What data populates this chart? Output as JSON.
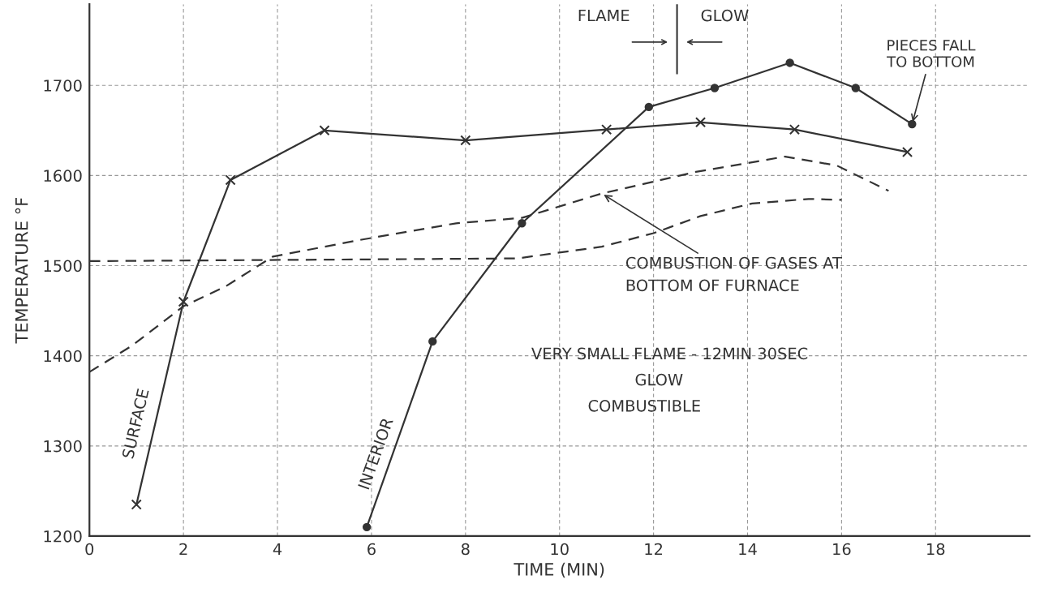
{
  "chart_data": {
    "type": "line",
    "xlabel": "TIME (MIN)",
    "ylabel": "TEMPERATURE °F",
    "xlim": [
      0,
      20
    ],
    "ylim": [
      1200,
      1790
    ],
    "xticks": [
      0,
      2,
      4,
      6,
      8,
      10,
      12,
      14,
      16,
      18
    ],
    "yticks": [
      1200,
      1300,
      1400,
      1500,
      1600,
      1700
    ],
    "grid": true,
    "line_style": "solid",
    "series": [
      {
        "name": "SURFACE",
        "color": "#333333",
        "marker": "cross",
        "x": [
          1,
          2,
          3,
          5,
          8,
          11,
          13,
          15,
          17.4
        ],
        "values": [
          1235,
          1460,
          1595,
          1650,
          1639,
          1651,
          1659,
          1651,
          1626
        ]
      },
      {
        "name": "INTERIOR",
        "color": "#333333",
        "marker": "circle",
        "x": [
          5.9,
          7.3,
          9.2,
          11.9,
          13.3,
          14.9,
          16.3,
          17.5
        ],
        "values": [
          1210,
          1416,
          1547,
          1676,
          1697,
          1725,
          1697,
          1657
        ]
      },
      {
        "color": "#333333",
        "marker": "none",
        "line_style": "dashed",
        "x": [
          0,
          0.9,
          2,
          2.9,
          3.9,
          5.7,
          7.8,
          9.2,
          10.9,
          12.9,
          14.8,
          15.9,
          17
        ],
        "values": [
          1382,
          1411,
          1455,
          1477,
          1510,
          1528,
          1547,
          1553,
          1580,
          1604,
          1621,
          1611,
          1583
        ]
      },
      {
        "color": "#333333",
        "marker": "none",
        "line_style": "dashed",
        "x": [
          0,
          9.1,
          10.9,
          12,
          13,
          14.1,
          15.3,
          16
        ],
        "values": [
          1505,
          1508,
          1521,
          1536,
          1555,
          1569,
          1574,
          1573
        ]
      }
    ],
    "ref_lines": [
      {
        "axis": "x",
        "value": 12.5,
        "color": "#333333"
      }
    ],
    "annotations": [
      "FLAME",
      "GLOW",
      {
        "text": "PIECES FALL\nTO BOTTOM",
        "x": 17.5,
        "y": 1657
      },
      {
        "text": "COMBUSTION OF GASES AT\nBOTTOM OF FURNACE",
        "x": 10.9,
        "y": 1580
      },
      "VERY SMALL FLAME - 12MIN 30SEC",
      "GLOW",
      "COMBUSTIBLE"
    ]
  }
}
